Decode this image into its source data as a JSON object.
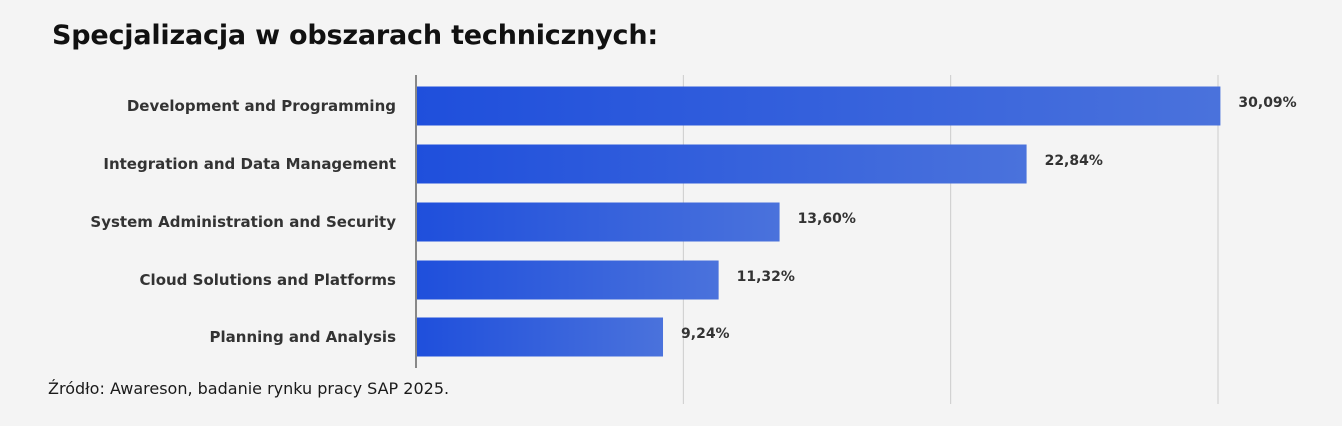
{
  "title": "Specjalizacja w obszarach technicznych:",
  "source": "Źródło: Awareson, badanie rynku pracy SAP 2025.",
  "chart_data": {
    "type": "bar",
    "orientation": "horizontal",
    "categories": [
      "Development and Programming",
      "Integration and Data Management",
      "System Administration and Security",
      "Cloud Solutions and Platforms",
      "Planning and Analysis"
    ],
    "values": [
      30.09,
      22.84,
      13.6,
      11.32,
      9.24
    ],
    "value_labels": [
      "30,09%",
      "22,84%",
      "13,60%",
      "11,32%",
      "9,24%"
    ],
    "xlim": [
      0,
      30
    ],
    "grid": true,
    "colors": {
      "bar_start": "#1f4fdc",
      "bar_end": "#4a72dc",
      "grid": "#cccccc",
      "axis": "#888888",
      "text": "#333333"
    }
  }
}
